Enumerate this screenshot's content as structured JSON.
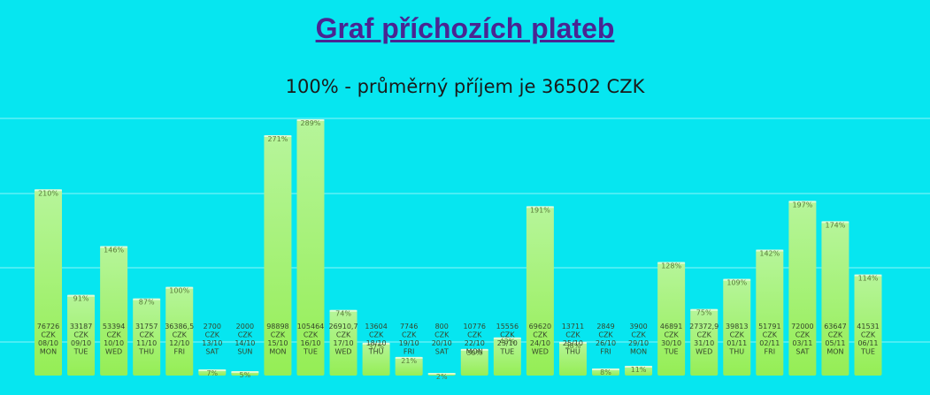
{
  "header": {
    "title": "Graf příchozích plateb",
    "subtitle": "100% - průměrný příjem je 36502 CZK"
  },
  "colors": {
    "background": "#06e6f0",
    "bar_top": "#b6f59a",
    "bar_bottom": "#95ee55",
    "title": "#4a2592"
  },
  "chart_data": {
    "type": "bar",
    "title": "Graf příchozích plateb",
    "subtitle": "100% - průměrný příjem je 36502 CZK",
    "currency": "CZK",
    "average": 36502,
    "grid": true,
    "bars": [
      {
        "amount": "76726",
        "date": "08/10",
        "day": "MON",
        "pct": "210%",
        "value": 210
      },
      {
        "amount": "33187",
        "date": "09/10",
        "day": "TUE",
        "pct": "91%",
        "value": 91
      },
      {
        "amount": "53394",
        "date": "10/10",
        "day": "WED",
        "pct": "146%",
        "value": 146
      },
      {
        "amount": "31757",
        "date": "11/10",
        "day": "THU",
        "pct": "87%",
        "value": 87
      },
      {
        "amount": "36386,5",
        "date": "12/10",
        "day": "FRI",
        "pct": "100%",
        "value": 100
      },
      {
        "amount": "2700",
        "date": "13/10",
        "day": "SAT",
        "pct": "7%",
        "value": 7
      },
      {
        "amount": "2000",
        "date": "14/10",
        "day": "SUN",
        "pct": "5%",
        "value": 5
      },
      {
        "amount": "98898",
        "date": "15/10",
        "day": "MON",
        "pct": "271%",
        "value": 271
      },
      {
        "amount": "105464",
        "date": "16/10",
        "day": "TUE",
        "pct": "289%",
        "value": 289
      },
      {
        "amount": "26910,7",
        "date": "17/10",
        "day": "WED",
        "pct": "74%",
        "value": 74
      },
      {
        "amount": "13604",
        "date": "18/10",
        "day": "THU",
        "pct": "37%",
        "value": 37
      },
      {
        "amount": "7746",
        "date": "19/10",
        "day": "FRI",
        "pct": "21%",
        "value": 21
      },
      {
        "amount": "800",
        "date": "20/10",
        "day": "SAT",
        "pct": "2%",
        "value": 2
      },
      {
        "amount": "10776",
        "date": "22/10",
        "day": "MON",
        "pct": "30%",
        "value": 30
      },
      {
        "amount": "15556",
        "date": "23/10",
        "day": "TUE",
        "pct": "43%",
        "value": 43
      },
      {
        "amount": "69620",
        "date": "24/10",
        "day": "WED",
        "pct": "191%",
        "value": 191
      },
      {
        "amount": "13711",
        "date": "25/10",
        "day": "THU",
        "pct": "38%",
        "value": 38
      },
      {
        "amount": "2849",
        "date": "26/10",
        "day": "FRI",
        "pct": "8%",
        "value": 8
      },
      {
        "amount": "3900",
        "date": "29/10",
        "day": "MON",
        "pct": "11%",
        "value": 11
      },
      {
        "amount": "46891",
        "date": "30/10",
        "day": "TUE",
        "pct": "128%",
        "value": 128
      },
      {
        "amount": "27372,9",
        "date": "31/10",
        "day": "WED",
        "pct": "75%",
        "value": 75
      },
      {
        "amount": "39813",
        "date": "01/11",
        "day": "THU",
        "pct": "109%",
        "value": 109
      },
      {
        "amount": "51791",
        "date": "02/11",
        "day": "FRI",
        "pct": "142%",
        "value": 142
      },
      {
        "amount": "72000",
        "date": "03/11",
        "day": "SAT",
        "pct": "197%",
        "value": 197
      },
      {
        "amount": "63647",
        "date": "05/11",
        "day": "MON",
        "pct": "174%",
        "value": 174
      },
      {
        "amount": "41531",
        "date": "06/11",
        "day": "TUE",
        "pct": "114%",
        "value": 114
      }
    ],
    "ylim": [
      0,
      300
    ]
  }
}
